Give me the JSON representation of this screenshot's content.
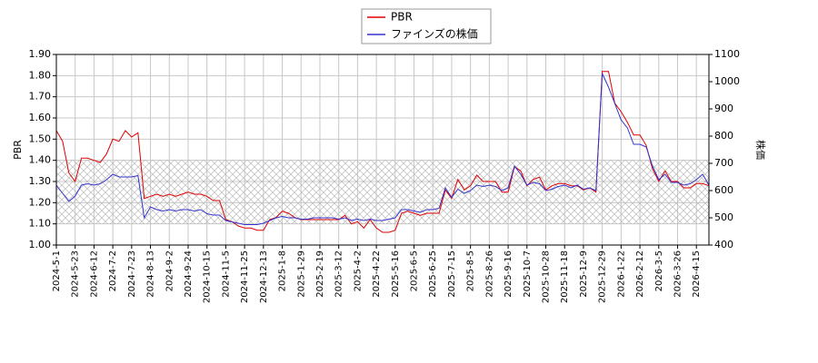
{
  "chart_data": {
    "type": "line",
    "categories": [
      "2024-5-1",
      null,
      null,
      "2024-5-23",
      null,
      null,
      "2024-6-12",
      null,
      null,
      "2024-7-2",
      null,
      null,
      "2024-7-23",
      null,
      null,
      "2024-8-13",
      null,
      null,
      "2024-9-2",
      null,
      null,
      "2024-9-24",
      null,
      null,
      "2024-10-15",
      null,
      null,
      "2024-11-5",
      null,
      null,
      "2024-11-25",
      null,
      null,
      "2024-12-13",
      null,
      null,
      "2025-1-8",
      null,
      null,
      "2025-1-29",
      null,
      null,
      "2025-2-19",
      null,
      null,
      "2025-3-12",
      null,
      null,
      "2025-4-2",
      null,
      null,
      "2025-4-22",
      null,
      null,
      "2025-5-16",
      null,
      null,
      "2025-6-5",
      null,
      null,
      "2025-6-25",
      null,
      null,
      "2025-7-15",
      null,
      null,
      "2025-8-5",
      null,
      null,
      "2025-8-26",
      null,
      null,
      "2025-9-16",
      null,
      null,
      "2025-10-7",
      null,
      null,
      "2025-10-28",
      null,
      null,
      "2025-11-18",
      null,
      null,
      "2025-12-9",
      null,
      null,
      "2025-12-29",
      null,
      null,
      "2026-1-22",
      null,
      null,
      "2026-2-12",
      null,
      null,
      "2026-3-5",
      null,
      null,
      "2026-3-26",
      null,
      null,
      "2026-4-15",
      null,
      null
    ],
    "series": [
      {
        "name": "PBR",
        "color": "#dd0000",
        "axis": "y",
        "values": [
          1.54,
          1.49,
          1.34,
          1.3,
          1.41,
          1.41,
          1.4,
          1.39,
          1.43,
          1.5,
          1.49,
          1.54,
          1.51,
          1.53,
          1.22,
          1.23,
          1.24,
          1.23,
          1.24,
          1.23,
          1.24,
          1.25,
          1.24,
          1.24,
          1.23,
          1.21,
          1.21,
          1.12,
          1.11,
          1.09,
          1.08,
          1.08,
          1.07,
          1.07,
          1.12,
          1.13,
          1.16,
          1.15,
          1.13,
          1.12,
          1.12,
          1.12,
          1.12,
          1.12,
          1.12,
          1.12,
          1.14,
          1.1,
          1.11,
          1.08,
          1.12,
          1.08,
          1.06,
          1.06,
          1.07,
          1.15,
          1.16,
          1.15,
          1.14,
          1.15,
          1.15,
          1.15,
          1.26,
          1.22,
          1.31,
          1.26,
          1.28,
          1.33,
          1.3,
          1.3,
          1.3,
          1.25,
          1.25,
          1.37,
          1.35,
          1.28,
          1.31,
          1.32,
          1.26,
          1.28,
          1.29,
          1.29,
          1.28,
          1.28,
          1.26,
          1.27,
          1.25,
          1.82,
          1.82,
          1.67,
          1.63,
          1.58,
          1.52,
          1.52,
          1.47,
          1.36,
          1.3,
          1.35,
          1.3,
          1.3,
          1.27,
          1.27,
          1.29,
          1.29,
          1.28
        ]
      },
      {
        "name": "ファインズの株価",
        "color": "#3333cc",
        "axis": "y2",
        "values": [
          620,
          590,
          560,
          580,
          620,
          625,
          620,
          625,
          640,
          660,
          650,
          650,
          650,
          655,
          500,
          540,
          530,
          525,
          530,
          525,
          530,
          530,
          525,
          530,
          515,
          510,
          510,
          490,
          485,
          480,
          475,
          475,
          475,
          480,
          490,
          500,
          505,
          500,
          500,
          495,
          495,
          500,
          500,
          500,
          500,
          495,
          500,
          490,
          495,
          490,
          495,
          490,
          490,
          495,
          500,
          530,
          530,
          525,
          520,
          530,
          530,
          535,
          610,
          575,
          605,
          590,
          600,
          620,
          615,
          620,
          615,
          600,
          610,
          690,
          660,
          620,
          630,
          625,
          600,
          605,
          615,
          620,
          610,
          620,
          605,
          610,
          600,
          1030,
          980,
          920,
          860,
          830,
          770,
          770,
          760,
          690,
          640,
          660,
          630,
          630,
          620,
          625,
          640,
          660,
          620
        ]
      }
    ],
    "ylabel": "PBR",
    "y2label": "株価",
    "ylim": [
      1.0,
      1.9
    ],
    "yticks": [
      {
        "value": 1.0,
        "label": "1.00"
      },
      {
        "value": 1.1,
        "label": "1.10"
      },
      {
        "value": 1.2,
        "label": "1.20"
      },
      {
        "value": 1.3,
        "label": "1.30"
      },
      {
        "value": 1.4,
        "label": "1.40"
      },
      {
        "value": 1.5,
        "label": "1.50"
      },
      {
        "value": 1.6,
        "label": "1.60"
      },
      {
        "value": 1.7,
        "label": "1.70"
      },
      {
        "value": 1.8,
        "label": "1.80"
      },
      {
        "value": 1.9,
        "label": "1.90"
      }
    ],
    "y2lim": [
      400,
      1100
    ],
    "y2ticks": [
      400,
      500,
      600,
      700,
      800,
      900,
      1000,
      1100
    ],
    "grid": true,
    "legend": "upper center"
  }
}
